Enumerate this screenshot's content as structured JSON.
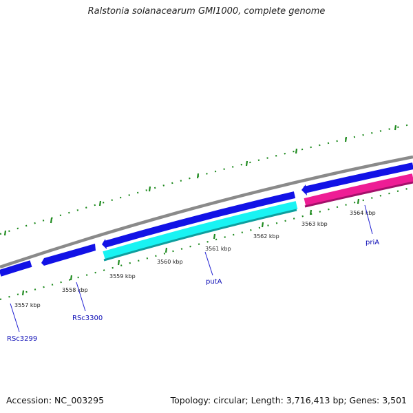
{
  "title": "Ralstonia solanacearum GMI1000, complete genome",
  "footer": {
    "accession": "Accession: NC_003295",
    "summary": "Topology: circular; Length: 3,716,413 bp; Genes: 3,501"
  },
  "colors": {
    "backbone": "#8a8a8a",
    "forward_cds": "#1212e6",
    "reverse_putA": "#19f3f3",
    "reverse_priA": "#ee1d95",
    "ticks": "#1e8a1e",
    "label_lines": "#1e1ed2",
    "gene_label_text": "#0b0bb5"
  },
  "ticks": [
    {
      "label": "3557 kbp"
    },
    {
      "label": "3558 kbp"
    },
    {
      "label": "3559 kbp"
    },
    {
      "label": "3560 kbp"
    },
    {
      "label": "3561 kbp"
    },
    {
      "label": "3562 kbp"
    },
    {
      "label": "3563 kbp"
    },
    {
      "label": "3564 kbp"
    }
  ],
  "genes": [
    {
      "label": "RSc3299"
    },
    {
      "label": "RSc3300"
    },
    {
      "label": "putA"
    },
    {
      "label": "priA"
    }
  ]
}
